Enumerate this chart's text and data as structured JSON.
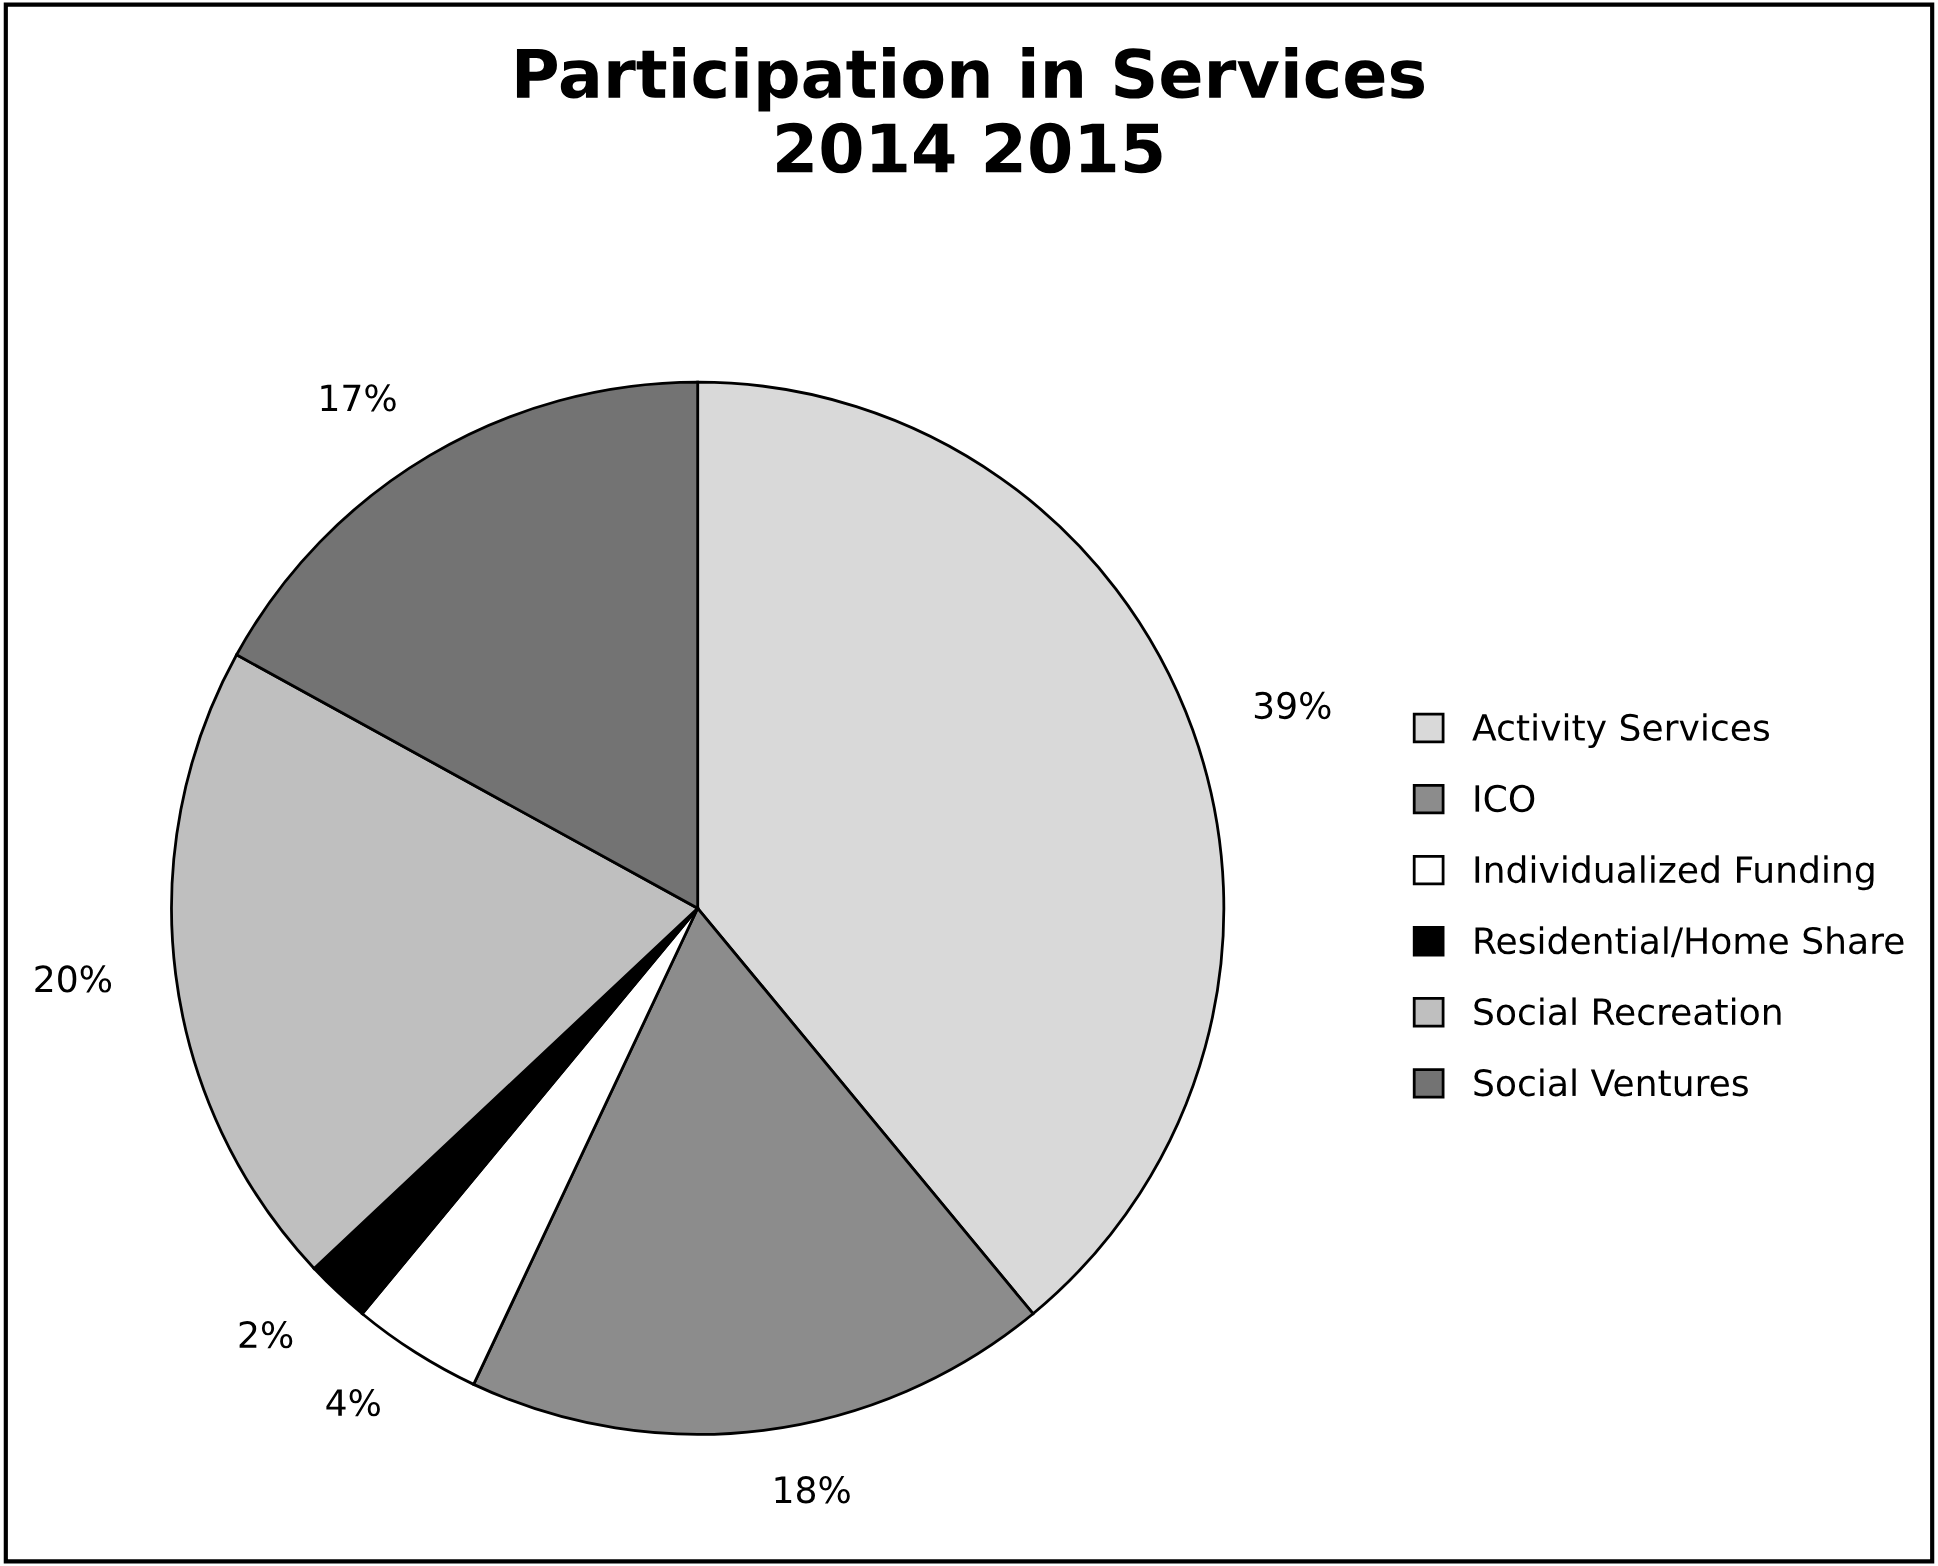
{
  "chart_data": {
    "type": "pie",
    "title": "Participation in Services\n2014 2015",
    "categories": [
      "Activity Services",
      "ICO",
      "Individualized Funding",
      "Residential/Home Share",
      "Social Recreation",
      "Social Ventures"
    ],
    "values": [
      39,
      18,
      4,
      2,
      20,
      17
    ],
    "value_labels": [
      "39%",
      "18%",
      "4%",
      "2%",
      "20%",
      "17%"
    ],
    "colors": [
      "#d9d9d9",
      "#8c8c8c",
      "#ffffff",
      "#000000",
      "#bfbfbf",
      "#737373"
    ],
    "legend": "right"
  }
}
